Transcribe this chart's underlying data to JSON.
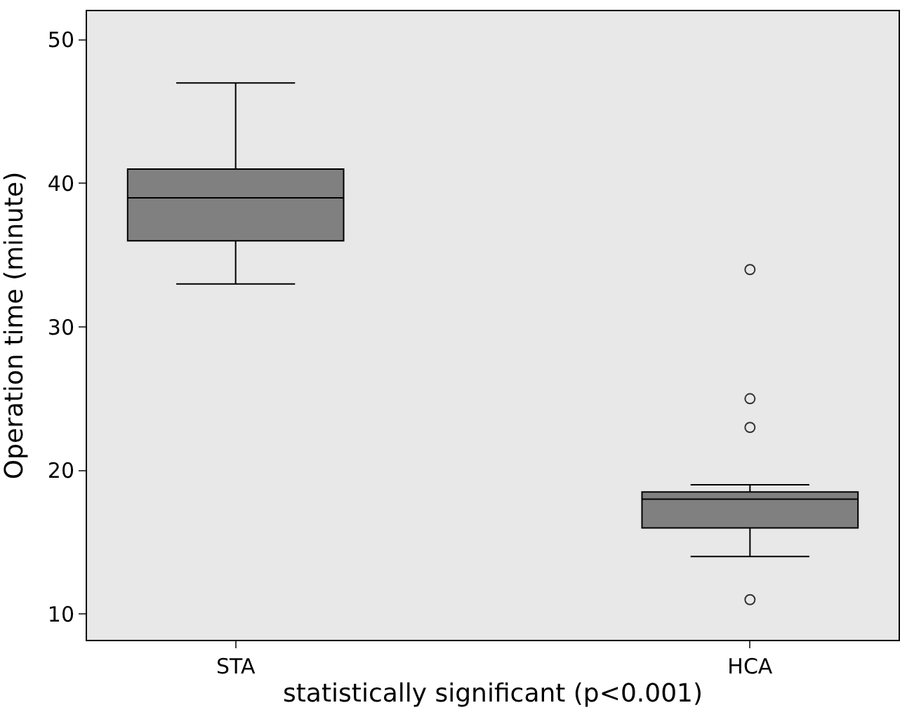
{
  "chart_data": {
    "type": "box",
    "xlabel": "statistically significant (p<0.001)",
    "ylabel": "Operation time (minute)",
    "categories": [
      "STA",
      "HCA"
    ],
    "boxes": [
      {
        "low": 33,
        "q1": 36,
        "median": 39,
        "q3": 41,
        "high": 47
      },
      {
        "low": 14,
        "q1": 16,
        "median": 18,
        "q3": 18.5,
        "high": 19,
        "outliers": [
          34,
          25,
          23,
          11
        ]
      }
    ],
    "color": "#808080",
    "ylim": [
      8.2,
      52
    ],
    "yticks": [
      10,
      20,
      30,
      40,
      50
    ],
    "grid": false
  }
}
